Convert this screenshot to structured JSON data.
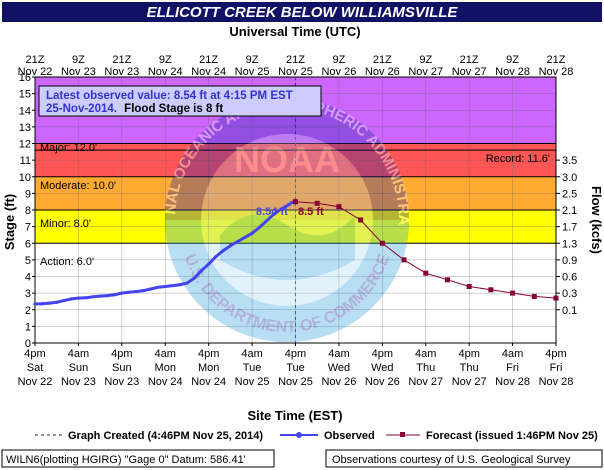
{
  "header": {
    "title": "ELLICOTT CREEK BELOW WILLIAMSVILLE",
    "top_axis_label": "Universal Time (UTC)",
    "bottom_axis_label": "Site Time (EST)"
  },
  "info_box": {
    "line1": "Latest observed value: 8.54 ft at 4:15 PM EST",
    "line2_date": "25-Nov-2014.",
    "line2_flood": "Flood Stage is 8 ft"
  },
  "axes": {
    "left_label": "Stage (ft)",
    "right_label": "Flow (kcfs)",
    "stage_ticks": [
      "0",
      "1",
      "2",
      "3",
      "4",
      "5",
      "6",
      "7",
      "8",
      "9",
      "10",
      "11",
      "12",
      "13",
      "14",
      "15",
      "16"
    ],
    "flow_ticks": [
      {
        "label": "0.1",
        "stage": 2.0
      },
      {
        "label": "0.3",
        "stage": 3.0
      },
      {
        "label": "0.6",
        "stage": 4.0
      },
      {
        "label": "0.9",
        "stage": 5.0
      },
      {
        "label": "1.3",
        "stage": 6.0
      },
      {
        "label": "1.7",
        "stage": 7.0
      },
      {
        "label": "2.1",
        "stage": 8.0
      },
      {
        "label": "2.5",
        "stage": 9.0
      },
      {
        "label": "3.0",
        "stage": 10.0
      },
      {
        "label": "3.5",
        "stage": 11.0
      }
    ],
    "bottom_ticks": [
      {
        "t": 0,
        "l1": "4pm",
        "l2": "Sat",
        "l3": "Nov 22"
      },
      {
        "t": 12,
        "l1": "4am",
        "l2": "Sun",
        "l3": "Nov 23"
      },
      {
        "t": 24,
        "l1": "4pm",
        "l2": "Sun",
        "l3": "Nov 23"
      },
      {
        "t": 36,
        "l1": "4am",
        "l2": "Mon",
        "l3": "Nov 24"
      },
      {
        "t": 48,
        "l1": "4pm",
        "l2": "Mon",
        "l3": "Nov 24"
      },
      {
        "t": 60,
        "l1": "4am",
        "l2": "Tue",
        "l3": "Nov 25"
      },
      {
        "t": 72,
        "l1": "4pm",
        "l2": "Tue",
        "l3": "Nov 25"
      },
      {
        "t": 84,
        "l1": "4am",
        "l2": "Wed",
        "l3": "Nov 26"
      },
      {
        "t": 96,
        "l1": "4pm",
        "l2": "Wed",
        "l3": "Nov 26"
      },
      {
        "t": 108,
        "l1": "4am",
        "l2": "Thu",
        "l3": "Nov 27"
      },
      {
        "t": 120,
        "l1": "4pm",
        "l2": "Thu",
        "l3": "Nov 27"
      },
      {
        "t": 132,
        "l1": "4am",
        "l2": "Fri",
        "l3": "Nov 28"
      },
      {
        "t": 144,
        "l1": "4pm",
        "l2": "Fri",
        "l3": "Nov 28"
      }
    ],
    "top_ticks": [
      {
        "t": 0,
        "l1": "21Z",
        "l2": "Nov 22"
      },
      {
        "t": 12,
        "l1": "9Z",
        "l2": "Nov 23"
      },
      {
        "t": 24,
        "l1": "21Z",
        "l2": "Nov 23"
      },
      {
        "t": 36,
        "l1": "9Z",
        "l2": "Nov 24"
      },
      {
        "t": 48,
        "l1": "21Z",
        "l2": "Nov 24"
      },
      {
        "t": 60,
        "l1": "9Z",
        "l2": "Nov 25"
      },
      {
        "t": 72,
        "l1": "21Z",
        "l2": "Nov 25"
      },
      {
        "t": 84,
        "l1": "9Z",
        "l2": "Nov 26"
      },
      {
        "t": 96,
        "l1": "21Z",
        "l2": "Nov 26"
      },
      {
        "t": 108,
        "l1": "9Z",
        "l2": "Nov 27"
      },
      {
        "t": 120,
        "l1": "21Z",
        "l2": "Nov 27"
      },
      {
        "t": 132,
        "l1": "9Z",
        "l2": "Nov 28"
      },
      {
        "t": 144,
        "l1": "21Z",
        "l2": "Nov 28"
      }
    ]
  },
  "categories": {
    "major": {
      "label": "Major: 12.0'",
      "stage": 12.0,
      "color": "#cc66ff"
    },
    "moderate": {
      "label": "Moderate: 10.0'",
      "stage": 10.0,
      "color": "#ff5555"
    },
    "minor": {
      "label": "Minor: 8.0'",
      "stage": 8.0,
      "color": "#ffaa33"
    },
    "action": {
      "label": "Action: 6.0'",
      "stage": 6.0,
      "color": "#ffff00"
    },
    "record": {
      "label": "Record: 11.6'",
      "stage": 11.6
    }
  },
  "annotations": {
    "latest_observed": "8.54 ft",
    "forecast_crest": "8.5 ft"
  },
  "legend": {
    "graph_created": "Graph Created (4:46PM Nov 25, 2014)",
    "observed": "Observed",
    "forecast": "Forecast (issued 1:46PM Nov 25)"
  },
  "footer": {
    "gauge": "WILN6(plotting HGIRG) \"Gage 0\" Datum: 586.41'",
    "courtesy": "Observations courtesy of U.S. Geological Survey"
  },
  "watermark": {
    "text_top": "NATIONAL OCEANIC AND ATMOSPHERIC ADMINISTRATION",
    "text_center": "NOAA",
    "text_bottom": "U.S. DEPARTMENT OF COMMERCE"
  },
  "colors": {
    "observed": "#4444ee",
    "forecast": "#880033",
    "title_bg": "#111166",
    "above_major": "#cc66ff",
    "moderate_band": "#ff5555",
    "minor_band": "#ffaa33",
    "action_band": "#ffff00"
  },
  "chart_data": {
    "type": "line",
    "title": "ELLICOTT CREEK BELOW WILLIAMSVILLE",
    "xlabel": "Site Time (EST)",
    "ylabel": "Stage (ft)",
    "y2label": "Flow (kcfs)",
    "x_units": "hours after 4pm Sat Nov 22 (EST)",
    "xlim": [
      0,
      144
    ],
    "ylim": [
      0,
      16
    ],
    "series": [
      {
        "name": "Observed",
        "x": [
          0,
          2,
          4,
          6,
          8,
          10,
          12,
          14,
          16,
          18,
          20,
          22,
          24,
          26,
          28,
          30,
          32,
          34,
          36,
          38,
          40,
          42,
          44,
          46,
          48,
          50,
          52,
          54,
          56,
          58,
          60,
          62,
          64,
          66,
          68,
          70,
          71,
          72
        ],
        "values": [
          2.35,
          2.36,
          2.4,
          2.45,
          2.55,
          2.65,
          2.7,
          2.72,
          2.78,
          2.82,
          2.85,
          2.9,
          3.0,
          3.05,
          3.1,
          3.15,
          3.25,
          3.35,
          3.4,
          3.45,
          3.5,
          3.6,
          3.9,
          4.35,
          4.75,
          5.2,
          5.55,
          5.85,
          6.1,
          6.35,
          6.6,
          6.95,
          7.35,
          7.75,
          8.05,
          8.3,
          8.45,
          8.54
        ]
      },
      {
        "name": "Forecast",
        "x": [
          72,
          78,
          84,
          90,
          96,
          102,
          108,
          114,
          120,
          126,
          132,
          138,
          144
        ],
        "values": [
          8.5,
          8.4,
          8.2,
          7.4,
          6.0,
          5.0,
          4.2,
          3.8,
          3.4,
          3.2,
          3.0,
          2.8,
          2.7
        ]
      }
    ]
  }
}
